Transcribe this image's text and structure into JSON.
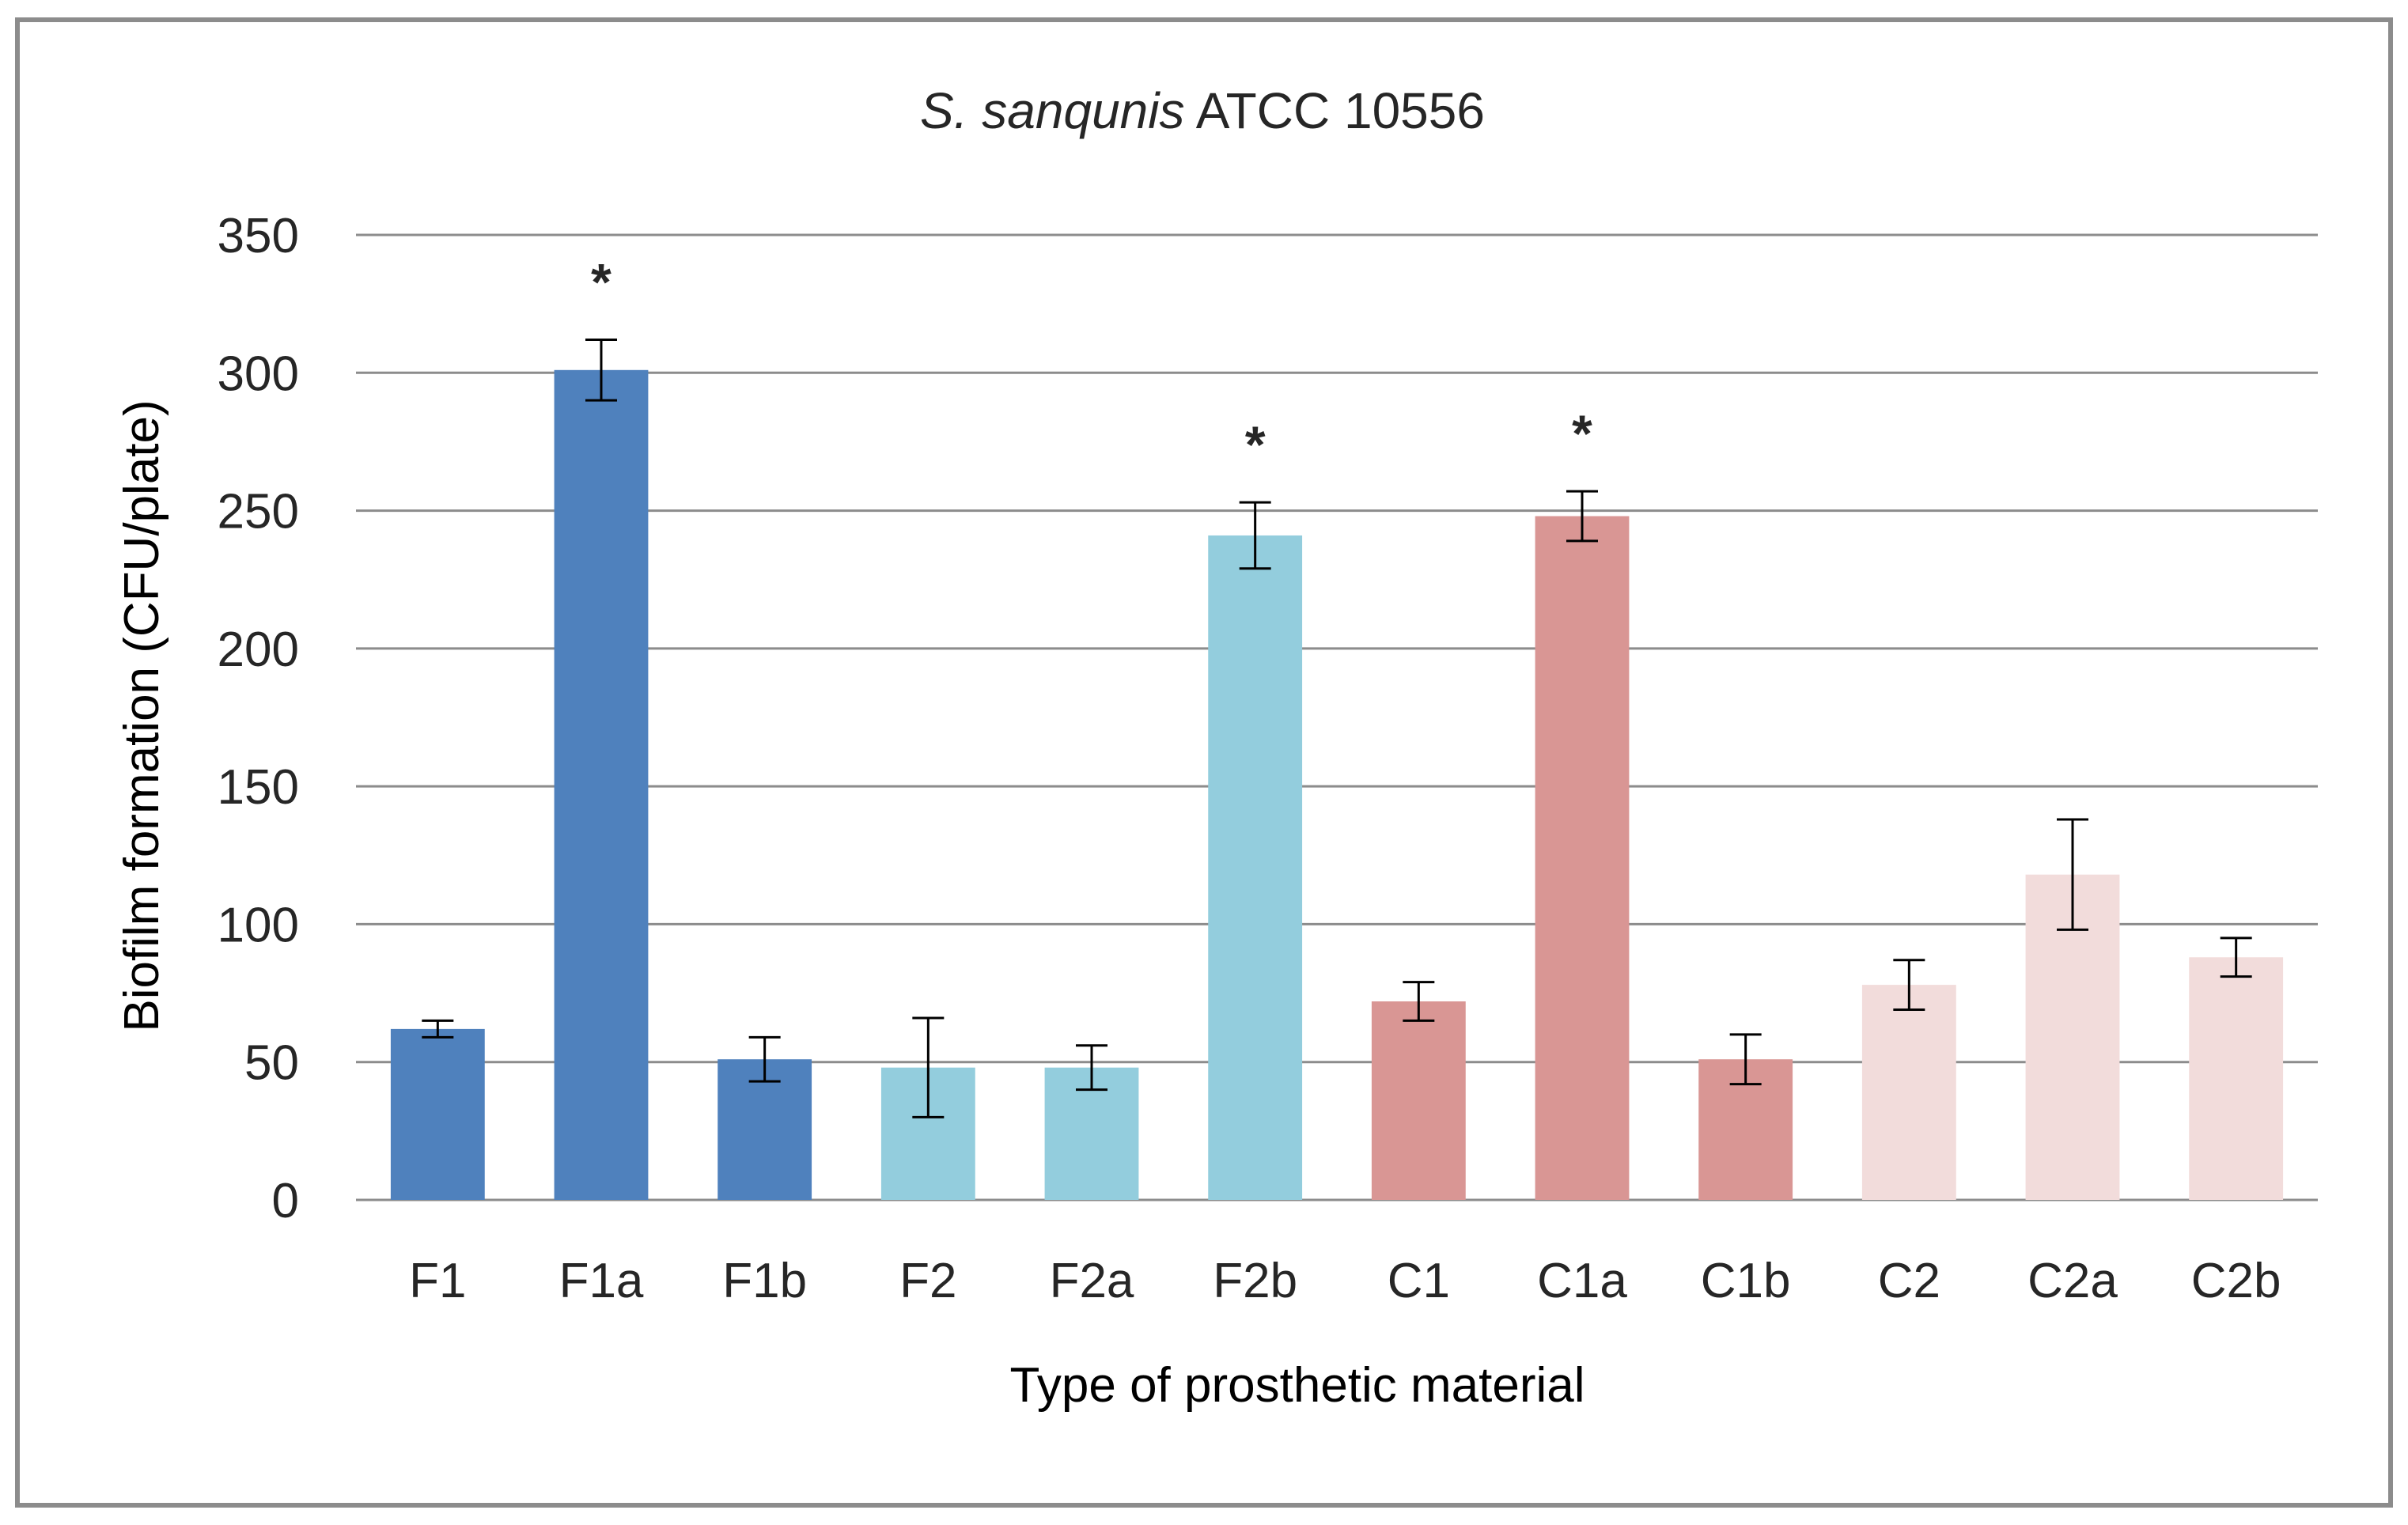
{
  "chart_data": {
    "type": "bar",
    "title_italic": "S. sanqunis",
    "title_rest": " ATCC 10556",
    "xlabel": "Type of prosthetic material",
    "ylabel": "Biofilm formation (CFU/plate)",
    "ylim": [
      0,
      350
    ],
    "yticks": [
      0,
      50,
      100,
      150,
      200,
      250,
      300,
      350
    ],
    "grid": true,
    "categories": [
      "F1",
      "F1a",
      "F1b",
      "F2",
      "F2a",
      "F2b",
      "C1",
      "C1a",
      "C1b",
      "C2",
      "C2a",
      "C2b"
    ],
    "values": [
      62,
      301,
      51,
      48,
      48,
      241,
      72,
      248,
      51,
      78,
      118,
      88
    ],
    "errors": [
      3,
      11,
      8,
      18,
      8,
      12,
      7,
      9,
      9,
      9,
      20,
      7
    ],
    "significance": [
      "",
      "*",
      "",
      "",
      "",
      "*",
      "",
      "*",
      "",
      "",
      "",
      ""
    ],
    "colors": [
      "#4f81bd",
      "#4f81bd",
      "#4f81bd",
      "#93cddd",
      "#93cddd",
      "#93cddd",
      "#d99694",
      "#d99694",
      "#d99694",
      "#f2dcdb",
      "#f2dcdb",
      "#f2dcdb"
    ]
  }
}
